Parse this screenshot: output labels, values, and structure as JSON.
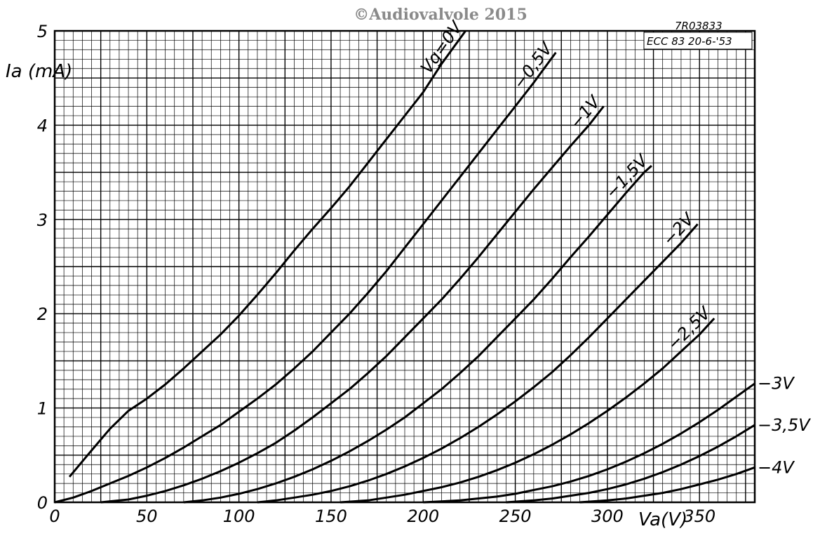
{
  "copyright": "©Audiovalvole 2015",
  "reference": {
    "code": "7R03833",
    "tube_date": "ECC 83  20-6-'53"
  },
  "chart_data": {
    "type": "line",
    "title": "",
    "xlabel": "Va(V)",
    "ylabel": "Ia (mA)",
    "xlim": [
      0,
      380
    ],
    "ylim": [
      0,
      5
    ],
    "grid": true,
    "x_ticks": [
      "0",
      "50",
      "100",
      "150",
      "200",
      "250",
      "300",
      "350"
    ],
    "y_ticks": [
      "0",
      "1",
      "2",
      "3",
      "4",
      "5"
    ],
    "series": [
      {
        "name": "Vg=0V",
        "label": "Vg=0V",
        "points": [
          [
            8,
            0.27
          ],
          [
            20,
            0.55
          ],
          [
            30,
            0.78
          ],
          [
            40,
            0.97
          ],
          [
            50,
            1.1
          ],
          [
            60,
            1.25
          ],
          [
            70,
            1.42
          ],
          [
            80,
            1.6
          ],
          [
            90,
            1.78
          ],
          [
            100,
            1.98
          ],
          [
            110,
            2.2
          ],
          [
            120,
            2.43
          ],
          [
            130,
            2.67
          ],
          [
            140,
            2.9
          ],
          [
            150,
            3.12
          ],
          [
            160,
            3.35
          ],
          [
            170,
            3.6
          ],
          [
            180,
            3.85
          ],
          [
            190,
            4.1
          ],
          [
            200,
            4.35
          ],
          [
            210,
            4.65
          ],
          [
            223,
            5.0
          ]
        ]
      },
      {
        "name": "-0.5V",
        "label": "−0,5V",
        "points": [
          [
            0,
            0
          ],
          [
            10,
            0.05
          ],
          [
            20,
            0.12
          ],
          [
            30,
            0.2
          ],
          [
            40,
            0.28
          ],
          [
            50,
            0.37
          ],
          [
            60,
            0.47
          ],
          [
            70,
            0.58
          ],
          [
            80,
            0.7
          ],
          [
            90,
            0.82
          ],
          [
            100,
            0.96
          ],
          [
            110,
            1.1
          ],
          [
            120,
            1.25
          ],
          [
            130,
            1.42
          ],
          [
            140,
            1.6
          ],
          [
            150,
            1.8
          ],
          [
            160,
            2.0
          ],
          [
            170,
            2.22
          ],
          [
            180,
            2.45
          ],
          [
            190,
            2.7
          ],
          [
            200,
            2.95
          ],
          [
            210,
            3.2
          ],
          [
            220,
            3.45
          ],
          [
            230,
            3.7
          ],
          [
            240,
            3.95
          ],
          [
            250,
            4.2
          ],
          [
            260,
            4.45
          ],
          [
            272,
            4.77
          ]
        ]
      },
      {
        "name": "-1V",
        "label": "−1V",
        "points": [
          [
            25,
            0
          ],
          [
            40,
            0.03
          ],
          [
            50,
            0.07
          ],
          [
            60,
            0.12
          ],
          [
            70,
            0.18
          ],
          [
            80,
            0.25
          ],
          [
            90,
            0.33
          ],
          [
            100,
            0.42
          ],
          [
            110,
            0.52
          ],
          [
            120,
            0.63
          ],
          [
            130,
            0.76
          ],
          [
            140,
            0.9
          ],
          [
            150,
            1.05
          ],
          [
            160,
            1.2
          ],
          [
            170,
            1.37
          ],
          [
            180,
            1.55
          ],
          [
            190,
            1.75
          ],
          [
            200,
            1.95
          ],
          [
            210,
            2.15
          ],
          [
            220,
            2.37
          ],
          [
            230,
            2.6
          ],
          [
            240,
            2.84
          ],
          [
            250,
            3.08
          ],
          [
            260,
            3.32
          ],
          [
            270,
            3.55
          ],
          [
            280,
            3.78
          ],
          [
            290,
            4.0
          ],
          [
            298,
            4.2
          ]
        ]
      },
      {
        "name": "-1.5V",
        "label": "−1,5V",
        "points": [
          [
            70,
            0
          ],
          [
            80,
            0.02
          ],
          [
            90,
            0.05
          ],
          [
            100,
            0.09
          ],
          [
            110,
            0.14
          ],
          [
            120,
            0.2
          ],
          [
            130,
            0.27
          ],
          [
            140,
            0.35
          ],
          [
            150,
            0.44
          ],
          [
            160,
            0.54
          ],
          [
            170,
            0.65
          ],
          [
            180,
            0.77
          ],
          [
            190,
            0.9
          ],
          [
            200,
            1.05
          ],
          [
            210,
            1.2
          ],
          [
            220,
            1.37
          ],
          [
            230,
            1.55
          ],
          [
            240,
            1.75
          ],
          [
            250,
            1.95
          ],
          [
            260,
            2.15
          ],
          [
            270,
            2.37
          ],
          [
            280,
            2.6
          ],
          [
            290,
            2.82
          ],
          [
            300,
            3.05
          ],
          [
            310,
            3.28
          ],
          [
            320,
            3.5
          ],
          [
            324,
            3.57
          ]
        ]
      },
      {
        "name": "-2V",
        "label": "−2V",
        "points": [
          [
            110,
            0
          ],
          [
            120,
            0.02
          ],
          [
            130,
            0.05
          ],
          [
            140,
            0.08
          ],
          [
            150,
            0.12
          ],
          [
            160,
            0.17
          ],
          [
            170,
            0.23
          ],
          [
            180,
            0.3
          ],
          [
            190,
            0.38
          ],
          [
            200,
            0.47
          ],
          [
            210,
            0.57
          ],
          [
            220,
            0.68
          ],
          [
            230,
            0.8
          ],
          [
            240,
            0.93
          ],
          [
            250,
            1.07
          ],
          [
            260,
            1.22
          ],
          [
            270,
            1.38
          ],
          [
            280,
            1.56
          ],
          [
            290,
            1.75
          ],
          [
            300,
            1.95
          ],
          [
            310,
            2.15
          ],
          [
            320,
            2.35
          ],
          [
            330,
            2.55
          ],
          [
            340,
            2.75
          ],
          [
            349,
            2.95
          ]
        ]
      },
      {
        "name": "-2.5V",
        "label": "−2,5V",
        "points": [
          [
            155,
            0
          ],
          [
            170,
            0.02
          ],
          [
            180,
            0.05
          ],
          [
            190,
            0.08
          ],
          [
            200,
            0.12
          ],
          [
            210,
            0.16
          ],
          [
            220,
            0.21
          ],
          [
            230,
            0.27
          ],
          [
            240,
            0.34
          ],
          [
            250,
            0.42
          ],
          [
            260,
            0.51
          ],
          [
            270,
            0.61
          ],
          [
            280,
            0.72
          ],
          [
            290,
            0.84
          ],
          [
            300,
            0.97
          ],
          [
            310,
            1.11
          ],
          [
            320,
            1.26
          ],
          [
            330,
            1.42
          ],
          [
            340,
            1.6
          ],
          [
            350,
            1.78
          ],
          [
            358,
            1.95
          ]
        ]
      },
      {
        "name": "-3V",
        "label": "−3V",
        "points": [
          [
            200,
            0
          ],
          [
            220,
            0.02
          ],
          [
            240,
            0.06
          ],
          [
            250,
            0.09
          ],
          [
            260,
            0.13
          ],
          [
            270,
            0.17
          ],
          [
            280,
            0.22
          ],
          [
            290,
            0.28
          ],
          [
            300,
            0.35
          ],
          [
            310,
            0.43
          ],
          [
            320,
            0.52
          ],
          [
            330,
            0.62
          ],
          [
            340,
            0.73
          ],
          [
            350,
            0.85
          ],
          [
            360,
            0.98
          ],
          [
            370,
            1.12
          ],
          [
            380,
            1.26
          ]
        ]
      },
      {
        "name": "-3.5V",
        "label": "−3,5V",
        "points": [
          [
            245,
            0
          ],
          [
            260,
            0.02
          ],
          [
            270,
            0.04
          ],
          [
            280,
            0.07
          ],
          [
            290,
            0.1
          ],
          [
            300,
            0.14
          ],
          [
            310,
            0.19
          ],
          [
            320,
            0.25
          ],
          [
            330,
            0.32
          ],
          [
            340,
            0.4
          ],
          [
            350,
            0.49
          ],
          [
            360,
            0.59
          ],
          [
            370,
            0.7
          ],
          [
            380,
            0.82
          ]
        ]
      },
      {
        "name": "-4V",
        "label": "−4V",
        "points": [
          [
            285,
            0
          ],
          [
            300,
            0.02
          ],
          [
            310,
            0.04
          ],
          [
            320,
            0.07
          ],
          [
            330,
            0.1
          ],
          [
            340,
            0.14
          ],
          [
            350,
            0.19
          ],
          [
            360,
            0.24
          ],
          [
            370,
            0.3
          ],
          [
            380,
            0.37
          ]
        ]
      }
    ]
  }
}
